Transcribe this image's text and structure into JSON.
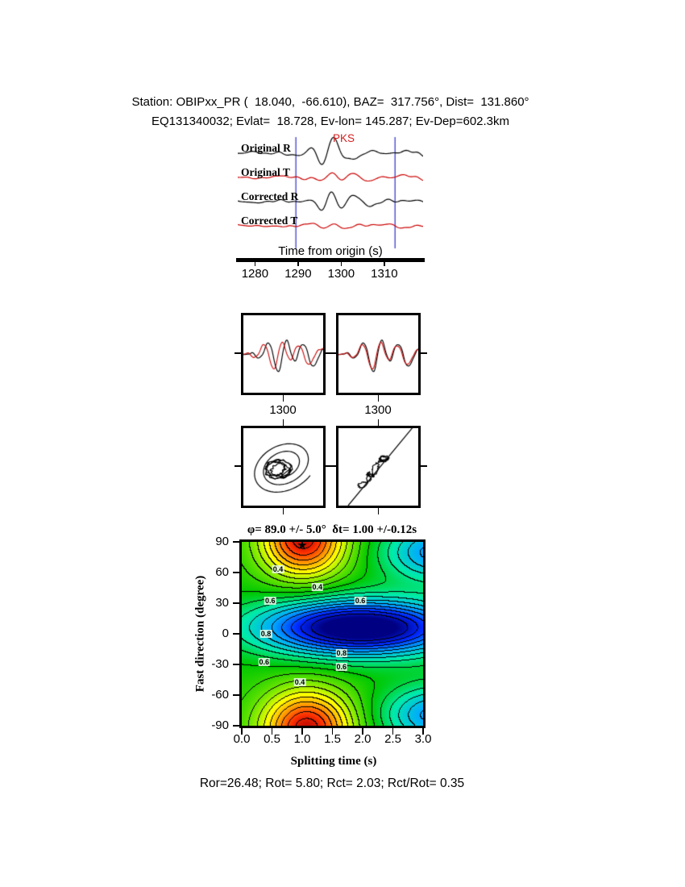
{
  "header": {
    "line1": "Station: OBIPxx_PR (  18.040,  -66.610), BAZ=  317.756°, Dist=  131.860°",
    "line2": "EQ131340032; Evlat=  18.728, Ev-lon= 145.287; Ev-Dep=602.3km"
  },
  "waveforms": {
    "phase_label": "PKS",
    "axis_label": "Time from origin (s)",
    "traces": [
      {
        "label": "Original R",
        "color": "#000000"
      },
      {
        "label": "Original T",
        "color": "#cc0000"
      },
      {
        "label": "Corrected R",
        "color": "#000000"
      },
      {
        "label": "Corrected T",
        "color": "#cc0000"
      }
    ]
  },
  "windows": {
    "left_label": "1300",
    "right_label": "1300"
  },
  "contour": {
    "title": "φ= 89.0 +/- 5.0°  δt= 1.00 +/-0.12s",
    "xlabel": "Splitting time (s)",
    "ylabel": "Fast direction (degree)",
    "xtick_labels": [
      "0.0",
      "0.5",
      "1.0",
      "1.5",
      "2.0",
      "2.5",
      "3.0"
    ],
    "ytick_labels": [
      "90",
      "60",
      "30",
      "0",
      "-30",
      "-60",
      "-90"
    ]
  },
  "footer": {
    "stats_line": "Ror=26.48; Rot= 5.80; Rct= 2.03; Rct/Rot= 0.35"
  },
  "measurement": {
    "station": "OBIPxx_PR",
    "station_lat": 18.04,
    "station_lon": -66.61,
    "baz_deg": 317.756,
    "dist_deg": 131.86,
    "event_id": "EQ131340032",
    "ev_lat": 18.728,
    "ev_lon": 145.287,
    "ev_depth": "602.3km",
    "phi_deg": 89.0,
    "phi_err_deg": 5.0,
    "dt_s": 1.0,
    "dt_err_s": 0.12,
    "Ror": 26.48,
    "Rot": 5.8,
    "Rct": 2.03,
    "Rct_over_Rot": 0.35
  },
  "chart_data": [
    {
      "type": "line",
      "title": "Radial/transverse seismograms before and after splitting correction",
      "x_axis": {
        "label": "Time from origin (s)",
        "range": [
          1276,
          1319
        ],
        "ticks": [
          1280,
          1290,
          1300,
          1310
        ]
      },
      "series": [
        {
          "name": "Original R",
          "color": "black"
        },
        {
          "name": "Original T",
          "color": "red"
        },
        {
          "name": "Corrected R",
          "color": "black"
        },
        {
          "name": "Corrected T",
          "color": "red"
        }
      ],
      "phase_marker": {
        "label": "PKS",
        "time": 1300
      },
      "window_markers": [
        1289.5,
        1312.5
      ]
    },
    {
      "type": "heatmap",
      "title": "φ= 89.0 +/- 5.0°  δt= 1.00 +/-0.12s",
      "xlabel": "Splitting time (s)",
      "ylabel": "Fast direction (degree)",
      "xlim": [
        0,
        3
      ],
      "ylim": [
        -90,
        90
      ],
      "xticks": [
        0,
        0.5,
        1,
        1.5,
        2,
        2.5,
        3
      ],
      "yticks": [
        90,
        60,
        30,
        0,
        -30,
        -60,
        -90
      ],
      "legend_position": "none",
      "grid": false,
      "contour_interval": 0.05,
      "best_fit": {
        "phi_deg": 89.0,
        "phi_err": 5.0,
        "dt_s": 1.0,
        "dt_err": 0.12,
        "marker": "star",
        "marker_xy": [
          1.0,
          87
        ]
      },
      "contour_labels": [
        {
          "v": "0.4",
          "x": 0.6,
          "y": 63
        },
        {
          "v": "0.6",
          "x": 0.47,
          "y": 32
        },
        {
          "v": "0.4",
          "x": 1.25,
          "y": 46
        },
        {
          "v": "0.6",
          "x": 1.96,
          "y": 32
        },
        {
          "v": "0.8",
          "x": 0.4,
          "y": 0
        },
        {
          "v": "0.6",
          "x": 0.37,
          "y": -28
        },
        {
          "v": "0.8",
          "x": 1.65,
          "y": -19
        },
        {
          "v": "0.6",
          "x": 1.65,
          "y": -32
        },
        {
          "v": "0.4",
          "x": 0.96,
          "y": -47
        }
      ],
      "field_model": {
        "base": 0.52,
        "bumps": [
          {
            "x": 1.02,
            "sx": 0.48,
            "y": 93,
            "sy": 26,
            "a": 0.46
          },
          {
            "x": 1.08,
            "sx": 0.52,
            "y": -93,
            "sy": 26,
            "a": 0.46
          },
          {
            "x": 1.95,
            "sx": 1.15,
            "y": 6,
            "sy": 19,
            "a": -0.6
          },
          {
            "x": 3.25,
            "sx": 0.62,
            "y": 80,
            "sy": 20,
            "a": -0.3
          },
          {
            "x": 3.25,
            "sx": 0.62,
            "y": -80,
            "sy": 20,
            "a": -0.3
          }
        ]
      }
    }
  ]
}
